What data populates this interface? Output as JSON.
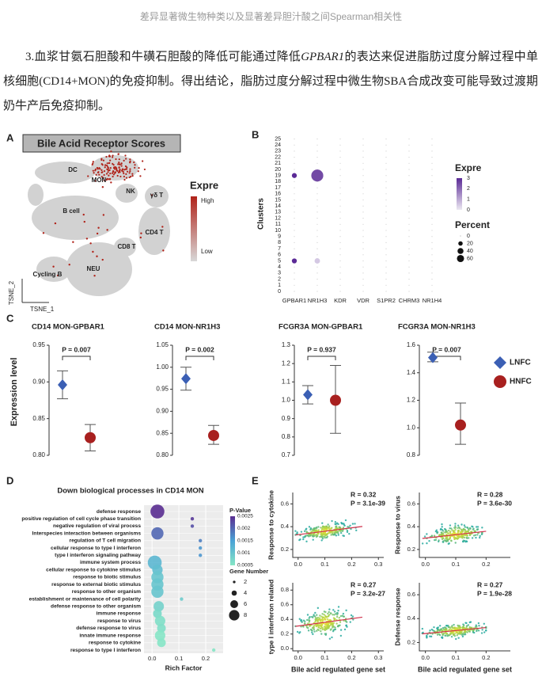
{
  "caption": "差异显著微生物种类以及显著差异胆汁酸之间Spearman相关性",
  "paragraph": {
    "before": "3.血浆甘氨石胆酸和牛磺石胆酸的降低可能通过降低",
    "gene": "GPBAR1",
    "after": "的表达来促进脂肪过度分解过程中单核细胞(CD14+MON)的免疫抑制。得出结论，脂肪过度分解过程中微生物SBA合成改变可能导致过渡期奶牛产后免疫抑制。"
  },
  "figure": {
    "panel_a": {
      "letter": "A",
      "title": "Bile Acid Receptor Scores",
      "clusters": [
        "DC",
        "MON",
        "NK",
        "γδ T",
        "B cell",
        "CD4 T",
        "CD8 T",
        "NEU",
        "Cycling B"
      ],
      "x_label": "TSNE_1",
      "y_label": "TSNE_2",
      "legend": {
        "title": "Expre",
        "high": "High",
        "low": "Low"
      }
    },
    "panel_b": {
      "letter": "B",
      "type": "dot",
      "y_label": "Clusters",
      "genes": [
        "GPBAR1",
        "NR1H3",
        "KDR",
        "VDR",
        "S1PR2",
        "CHRM3",
        "NR1H4"
      ],
      "clusters": [
        0,
        1,
        2,
        3,
        4,
        5,
        6,
        7,
        8,
        9,
        10,
        11,
        12,
        13,
        14,
        15,
        16,
        17,
        18,
        19,
        20,
        21,
        22,
        23,
        24,
        25
      ],
      "points": [
        {
          "gene": "GPBAR1",
          "cluster": 19,
          "expr": 3,
          "percent": 8
        },
        {
          "gene": "GPBAR1",
          "cluster": 5,
          "expr": 3,
          "percent": 8
        },
        {
          "gene": "NR1H3",
          "cluster": 19,
          "expr": 2.5,
          "percent": 60
        },
        {
          "gene": "NR1H3",
          "cluster": 5,
          "expr": 0.5,
          "percent": 10
        }
      ],
      "legend": {
        "color_title": "Expre",
        "color_ticks": [
          3,
          2,
          1,
          0
        ],
        "size_title": "Percent",
        "size_ticks": [
          0,
          20,
          40,
          60
        ]
      }
    },
    "panel_c": {
      "letter": "C",
      "type": "errorbar",
      "y_label": "Expression level",
      "groups": [
        {
          "name": "LNFC",
          "color": "#3b5fb4"
        },
        {
          "name": "HNFC",
          "color": "#a8201f"
        }
      ],
      "plots": [
        {
          "title": "CD14 MON-GPBAR1",
          "p_label": "P = 0.007",
          "ylim": [
            0.8,
            0.95
          ],
          "yticks": [
            {
              "value": 0.8,
              "label": "0.80"
            },
            0.85,
            {
              "value": 0.9,
              "label": "0.90"
            },
            0.95
          ],
          "points": [
            {
              "value": 0.896,
              "low": 0.877,
              "high": 0.915
            },
            {
              "value": 0.824,
              "low": 0.806,
              "high": 0.842
            }
          ]
        },
        {
          "title": "CD14 MON-NR1H3",
          "p_label": "P = 0.002",
          "ylim": [
            0.8,
            1.05
          ],
          "yticks": [
            {
              "value": 0.8,
              "label": "0.80"
            },
            0.85,
            {
              "value": 0.9,
              "label": "0.90"
            },
            0.95,
            {
              "value": 1,
              "label": "1.00"
            },
            1.05
          ],
          "points": [
            {
              "value": 0.974,
              "low": 0.948,
              "high": 1.0
            },
            {
              "value": 0.845,
              "low": 0.825,
              "high": 0.868
            }
          ]
        },
        {
          "title": "FCGR3A MON-GPBAR1",
          "p_label": "P = 0.937",
          "ylim": [
            0.7,
            1.3
          ],
          "yticks": [
            0.7,
            0.8,
            0.9,
            {
              "value": 1,
              "label": "1.0"
            },
            1.1,
            1.2,
            1.3
          ],
          "points": [
            {
              "value": 1.03,
              "low": 0.98,
              "high": 1.08
            },
            {
              "value": 1.0,
              "low": 0.82,
              "high": 1.19
            }
          ]
        },
        {
          "title": "FCGR3A MON-NR1H3",
          "p_label": "P = 0.007",
          "ylim": [
            0.8,
            1.6
          ],
          "yticks": [
            0.8,
            {
              "value": 1,
              "label": "1.0"
            },
            1.2,
            1.4,
            1.6
          ],
          "points": [
            {
              "value": 1.51,
              "low": 1.48,
              "high": 1.55
            },
            {
              "value": 1.02,
              "low": 0.88,
              "high": 1.18
            }
          ]
        }
      ]
    },
    "panel_d": {
      "letter": "D",
      "type": "dot",
      "title": "Down biological processes in CD14 MON",
      "x_label": "Rich Factor",
      "xlim": [
        -0.03,
        0.265
      ],
      "xticks": [
        {
          "value": 0,
          "label": "0.0"
        },
        0.1,
        0.2
      ],
      "terms": [
        {
          "name": "defense response",
          "rich": 0.02,
          "p": 0.0025,
          "genes": 8
        },
        {
          "name": "positive regulation of cell cycle phase  transition",
          "rich": 0.15,
          "p": 0.0024,
          "genes": 2
        },
        {
          "name": "negative regulation of viral process",
          "rich": 0.15,
          "p": 0.0022,
          "genes": 2
        },
        {
          "name": "Interspecies interaction between organisms",
          "rich": 0.02,
          "p": 0.002,
          "genes": 7
        },
        {
          "name": "regulation of T cell migration",
          "rich": 0.18,
          "p": 0.0018,
          "genes": 2
        },
        {
          "name": "cellular response to type I interferon",
          "rich": 0.18,
          "p": 0.0016,
          "genes": 2
        },
        {
          "name": "type I interferon signaling pathway",
          "rich": 0.18,
          "p": 0.0016,
          "genes": 2
        },
        {
          "name": "immune system process",
          "rich": 0.01,
          "p": 0.0012,
          "genes": 8
        },
        {
          "name": "cellular response to cytokine stimulus",
          "rich": 0.02,
          "p": 0.0011,
          "genes": 6
        },
        {
          "name": "response to biotic stimulus",
          "rich": 0.02,
          "p": 0.001,
          "genes": 7
        },
        {
          "name": "response to external biotic stimulus",
          "rich": 0.02,
          "p": 0.001,
          "genes": 7
        },
        {
          "name": "response to other organism",
          "rich": 0.02,
          "p": 0.001,
          "genes": 7
        },
        {
          "name": "establishment or maintenance of cell polarity",
          "rich": 0.11,
          "p": 0.0009,
          "genes": 2
        },
        {
          "name": "defense response to other organism",
          "rich": 0.025,
          "p": 0.0008,
          "genes": 6
        },
        {
          "name": "immune response",
          "rich": 0.02,
          "p": 0.0007,
          "genes": 5
        },
        {
          "name": "response to virus",
          "rich": 0.03,
          "p": 0.0006,
          "genes": 6
        },
        {
          "name": "defense response to virus",
          "rich": 0.035,
          "p": 0.0006,
          "genes": 5
        },
        {
          "name": "innate immune response",
          "rich": 0.03,
          "p": 0.0005,
          "genes": 6
        },
        {
          "name": "response to cytokine",
          "rich": 0.035,
          "p": 0.0004,
          "genes": 5
        },
        {
          "name": "response to type I interferon",
          "rich": 0.23,
          "p": 0.0003,
          "genes": 2
        }
      ],
      "legend": {
        "color_title": "P-Value",
        "color_ticks": [
          0.0025,
          0.002,
          0.0015,
          0.001,
          0.0005
        ],
        "size_title": "Gene Number",
        "size_ticks": [
          2,
          4,
          6,
          8
        ]
      }
    },
    "panel_e": {
      "letter": "E",
      "type": "scatter",
      "x_label": "Bile acid regulated gene set",
      "plots": [
        {
          "y_label": "Response to cytokine",
          "r_label": "R = 0.32",
          "p_label": "P = 3.1e-39",
          "xlim": [
            -0.02,
            0.32
          ],
          "ylim": [
            0.13,
            0.7
          ],
          "xticks": [
            {
              "value": 0,
              "label": "0.0"
            },
            0.1,
            0.2,
            0.3
          ],
          "yticks": [
            0.2,
            0.4,
            0.6
          ]
        },
        {
          "y_label": "Response to virus",
          "r_label": "R = 0.28",
          "p_label": "P = 3.6e-30",
          "xlim": [
            -0.02,
            0.28
          ],
          "ylim": [
            0.13,
            0.7
          ],
          "xticks": [
            {
              "value": 0,
              "label": "0.0"
            },
            0.1,
            0.2
          ],
          "yticks": [
            0.2,
            0.4,
            0.6
          ]
        },
        {
          "y_label": "type I interferon related",
          "r_label": "R = 0.27",
          "p_label": "P = 3.2e-27",
          "xlim": [
            -0.02,
            0.32
          ],
          "ylim": [
            -0.03,
            0.9
          ],
          "xticks": [
            {
              "value": 0,
              "label": "0.0"
            },
            0.1,
            0.2,
            0.3
          ],
          "yticks": [
            {
              "value": 0,
              "label": "0.0"
            },
            0.2,
            0.4,
            0.6,
            0.8
          ]
        },
        {
          "y_label": "Defense response",
          "r_label": "R = 0.27",
          "p_label": "P = 1.9e-28",
          "xlim": [
            -0.02,
            0.28
          ],
          "ylim": [
            0.13,
            0.7
          ],
          "xticks": [
            {
              "value": 0,
              "label": "0.0"
            },
            0.1,
            0.2
          ],
          "yticks": [
            0.2,
            0.4,
            0.6
          ]
        }
      ]
    }
  }
}
